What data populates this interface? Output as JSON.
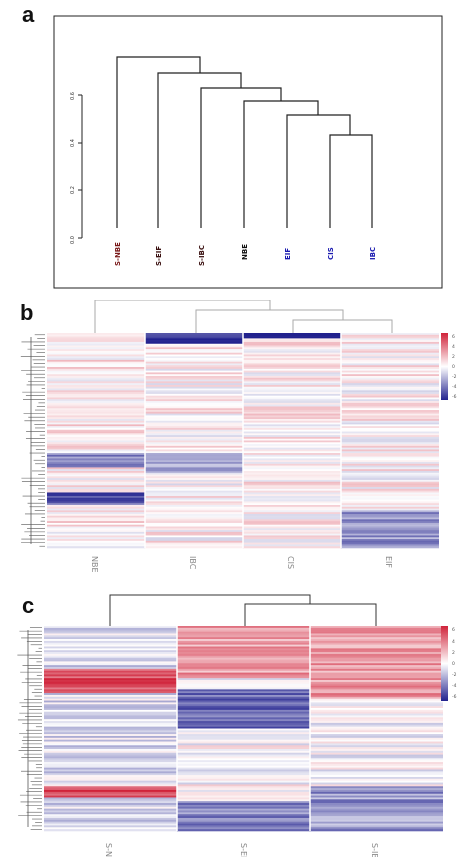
{
  "panels": {
    "a": {
      "label": "a",
      "y_ticks": [
        "0.0",
        "0.2",
        "0.4",
        "0.6"
      ],
      "leaves": [
        {
          "name": "S-NBE",
          "color": "#7a1a1a"
        },
        {
          "name": "S-EIF",
          "color": "#3a1010"
        },
        {
          "name": "S-IBC",
          "color": "#3a1010"
        },
        {
          "name": "NBE",
          "color": "#111111"
        },
        {
          "name": "EIF",
          "color": "#1a1ab0"
        },
        {
          "name": "CIS",
          "color": "#1a1ab0"
        },
        {
          "name": "IBC",
          "color": "#1a1ab0"
        }
      ]
    },
    "b": {
      "label": "b",
      "columns": [
        "NBE",
        "IBC",
        "CIS",
        "EIF"
      ],
      "legend_ticks": [
        "6",
        "4",
        "2",
        "0",
        "-2",
        "-4",
        "-6"
      ]
    },
    "c": {
      "label": "c",
      "columns": [
        "S-NBE",
        "S-EIF",
        "S-IBC"
      ],
      "legend_ticks": [
        "6",
        "4",
        "2",
        "0",
        "-2",
        "-4",
        "-6"
      ]
    }
  },
  "colors": {
    "high": "#d0233a",
    "low": "#22228e",
    "mid": "#ffffff",
    "line": "#222222"
  }
}
